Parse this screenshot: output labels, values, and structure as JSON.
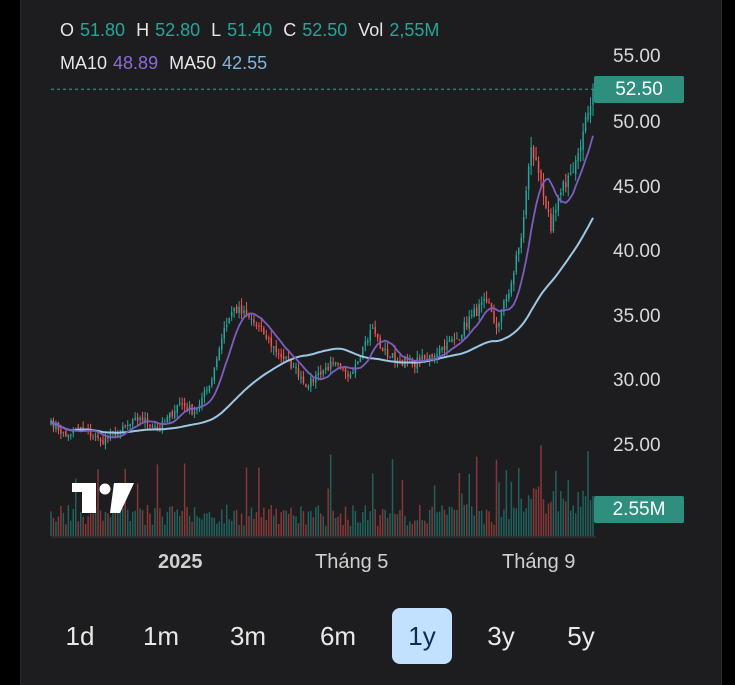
{
  "legend": {
    "o_label": "O",
    "o_value": "51.80",
    "h_label": "H",
    "h_value": "52.80",
    "l_label": "L",
    "l_value": "51.40",
    "c_label": "C",
    "c_value": "52.50",
    "vol_label": "Vol",
    "vol_value": "2,55M",
    "ma10_label": "MA10",
    "ma10_value": "48.89",
    "ma50_label": "MA50",
    "ma50_value": "42.55"
  },
  "badges": {
    "price": "52.50",
    "volume": "2.55M"
  },
  "timeframes": [
    {
      "label": "1d",
      "active": false
    },
    {
      "label": "1m",
      "active": false
    },
    {
      "label": "3m",
      "active": false
    },
    {
      "label": "6m",
      "active": false
    },
    {
      "label": "1y",
      "active": true
    },
    {
      "label": "3y",
      "active": false
    },
    {
      "label": "5y",
      "active": false
    }
  ],
  "colors": {
    "up": "#26a69a",
    "down": "#ef5350",
    "ma10": "#7b5ec0",
    "ma50": "#9cc7e6",
    "active_tab": "#c2e0ff"
  },
  "icons": {
    "logo": "tradingview-logo"
  },
  "chart_data": {
    "type": "candlestick",
    "y_ticks": [
      "55.00",
      "50.00",
      "45.00",
      "40.00",
      "35.00",
      "30.00",
      "25.00"
    ],
    "x_labels": [
      "2025",
      "Tháng 5",
      "Tháng 9"
    ],
    "ylim": [
      22.5,
      57
    ],
    "last_price": 52.5,
    "ohlc_anchors": [
      [
        0,
        26.8
      ],
      [
        6,
        25.6
      ],
      [
        12,
        26.3
      ],
      [
        20,
        25.2
      ],
      [
        28,
        26.0
      ],
      [
        36,
        27.0
      ],
      [
        44,
        26.2
      ],
      [
        52,
        28.2
      ],
      [
        58,
        27.5
      ],
      [
        64,
        29.5
      ],
      [
        70,
        34.0
      ],
      [
        74,
        35.5
      ],
      [
        80,
        34.8
      ],
      [
        86,
        33.5
      ],
      [
        92,
        32.0
      ],
      [
        98,
        31.0
      ],
      [
        104,
        29.5
      ],
      [
        108,
        30.5
      ],
      [
        114,
        31.2
      ],
      [
        120,
        30.2
      ],
      [
        126,
        32.5
      ],
      [
        130,
        34.0
      ],
      [
        134,
        32.2
      ],
      [
        140,
        31.5
      ],
      [
        146,
        31.3
      ],
      [
        152,
        31.6
      ],
      [
        158,
        32.5
      ],
      [
        164,
        33.2
      ],
      [
        170,
        35.0
      ],
      [
        176,
        36.0
      ],
      [
        180,
        34.0
      ],
      [
        186,
        37.5
      ],
      [
        190,
        41.0
      ],
      [
        194,
        48.0
      ],
      [
        198,
        45.5
      ],
      [
        202,
        41.5
      ],
      [
        206,
        44.5
      ],
      [
        210,
        46.0
      ],
      [
        214,
        48.0
      ],
      [
        219,
        52.5
      ]
    ],
    "volume_last": 2.55,
    "volume_unit": "M",
    "candle_count": 220,
    "ma10_last": 48.89,
    "ma50_last": 42.55
  }
}
